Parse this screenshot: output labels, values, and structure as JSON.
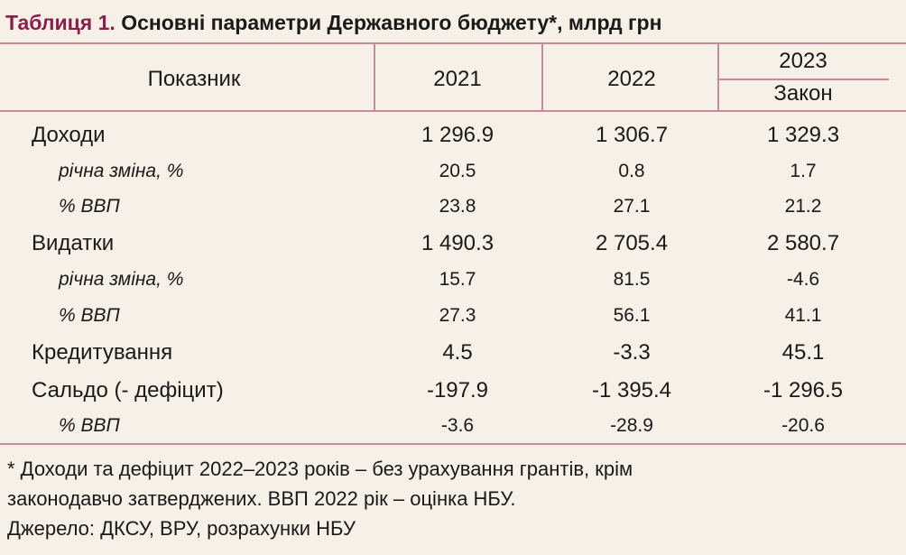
{
  "title": {
    "label": "Таблиця 1.",
    "text": "Основні параметри Державного бюджету*, млрд грн"
  },
  "table": {
    "header": {
      "indicator": "Показник",
      "columns": [
        "2021",
        "2022",
        "2023"
      ],
      "subheader": "Закон"
    },
    "rows": [
      [
        "Доходи",
        "1 296.9",
        "1 306.7",
        "1 329.3"
      ],
      [
        "річна зміна, %",
        "20.5",
        "0.8",
        "1.7"
      ],
      [
        "% ВВП",
        "23.8",
        "27.1",
        "21.2"
      ],
      [
        "Видатки",
        "1 490.3",
        "2 705.4",
        "2 580.7"
      ],
      [
        "річна зміна, %",
        "15.7",
        "81.5",
        "-4.6"
      ],
      [
        "% ВВП",
        "27.3",
        "56.1",
        "41.1"
      ],
      [
        "Кредитування",
        "4.5",
        "-3.3",
        "45.1"
      ],
      [
        "Сальдо (- дефіцит)",
        "-197.9",
        "-1 395.4",
        "-1 296.5"
      ],
      [
        "% ВВП",
        "-3.6",
        "-28.9",
        "-20.6"
      ]
    ]
  },
  "footnote": [
    "* Доходи та дефіцит 2022–2023 років – без урахування грантів, крім",
    "законодавчо затверджених. ВВП 2022 рік – оцінка НБУ.",
    "Джерело: ДКСУ, ВРУ, розрахунки НБУ"
  ]
}
